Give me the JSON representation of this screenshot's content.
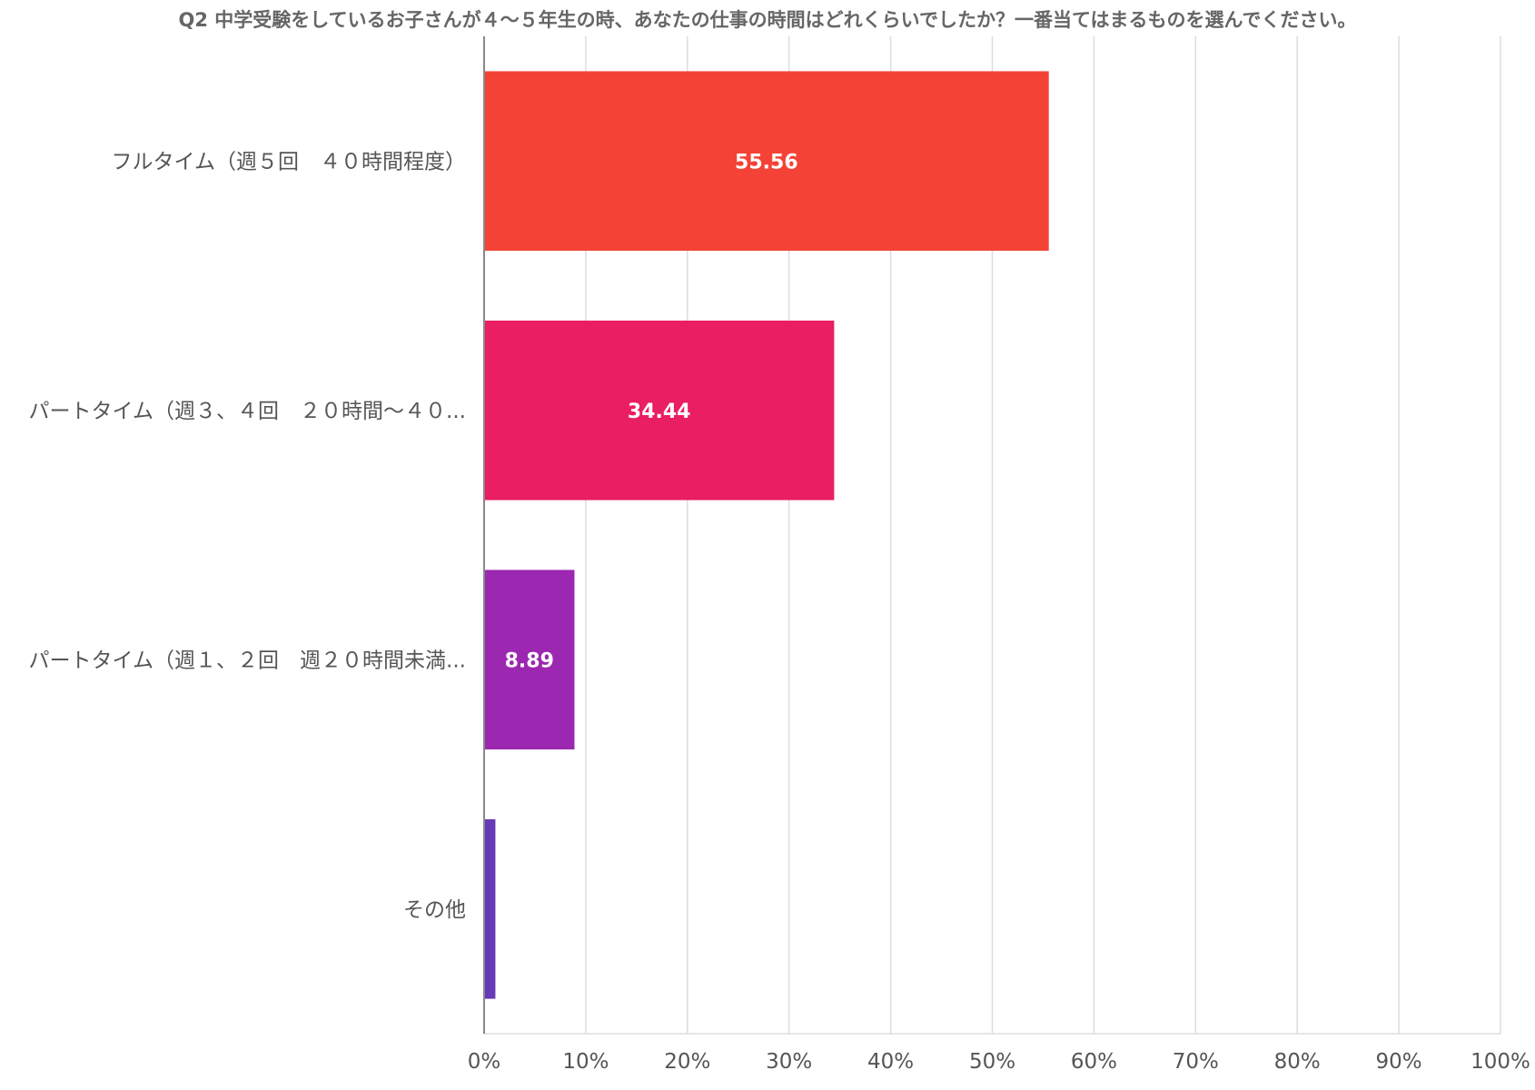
{
  "chart_data": {
    "type": "bar",
    "orientation": "horizontal",
    "title": "Q2 中学受験をしているお子さんが４〜５年生の時、あなたの仕事の時間はどれくらいでしたか？一番当てはまるものを選んでください。",
    "categories": [
      "フルタイム（週５回　４０時間程度）",
      "パートタイム（週３、４回　２０時間〜４０...",
      "パートタイム（週１、２回　週２０時間未満...",
      "その他"
    ],
    "values": [
      55.56,
      34.44,
      8.89,
      1.11
    ],
    "data_labels": [
      "55.56",
      "34.44",
      "8.89",
      ""
    ],
    "colors": [
      "#F44336",
      "#E91E63",
      "#9C27B0",
      "#673AB7"
    ],
    "xlim": [
      0,
      100
    ],
    "x_ticks": [
      "0%",
      "10%",
      "20%",
      "30%",
      "40%",
      "50%",
      "60%",
      "70%",
      "80%",
      "90%",
      "100%"
    ],
    "grid": true,
    "legend": "none"
  }
}
